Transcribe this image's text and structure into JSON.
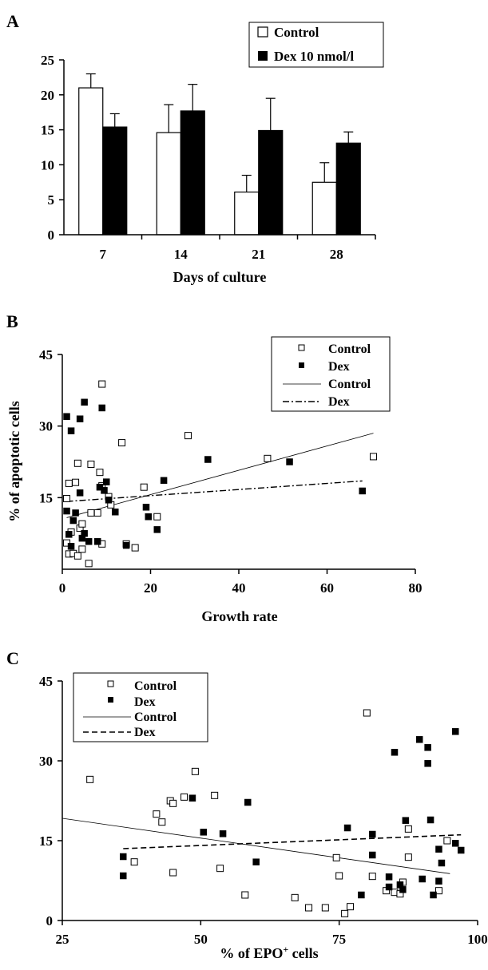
{
  "chart_data": [
    {
      "panel": "A",
      "type": "bar",
      "categories": [
        "7",
        "14",
        "21",
        "28"
      ],
      "series": [
        {
          "name": "Control",
          "values": [
            21.0,
            14.6,
            6.1,
            7.5
          ],
          "errors": [
            2.0,
            4.0,
            2.4,
            2.8
          ],
          "color": "#ffffff"
        },
        {
          "name": "Dex 10 nmol/l",
          "values": [
            15.4,
            17.7,
            14.9,
            13.1
          ],
          "errors": [
            1.9,
            3.8,
            4.6,
            1.6
          ],
          "color": "#000000"
        }
      ],
      "xlabel": "Days of culture",
      "ylabel": "",
      "ylim": [
        0,
        25
      ],
      "yticks": [
        "0",
        "5",
        "10",
        "15",
        "20",
        "25"
      ],
      "legend_position": "top-right"
    },
    {
      "panel": "B",
      "type": "scatter",
      "xlabel": "Growth rate",
      "ylabel": "% of apoptotic cells",
      "xlim": [
        0,
        80
      ],
      "ylim": [
        0,
        45
      ],
      "xticks": [
        "0",
        "20",
        "40",
        "60",
        "80"
      ],
      "yticks": [
        "15",
        "30",
        "45"
      ],
      "legend_position": "top-right",
      "legend": [
        "Control",
        "Dex",
        "Control",
        "Dex"
      ],
      "series": [
        {
          "name": "Control",
          "marker": "open-square",
          "points": [
            [
              9,
              38.8
            ],
            [
              13.5,
              26.5
            ],
            [
              28.5,
              28
            ],
            [
              18.5,
              17.2
            ],
            [
              46.5,
              23.2
            ],
            [
              70.5,
              23.6
            ],
            [
              1,
              14.8
            ],
            [
              1.5,
              18
            ],
            [
              3,
              18.2
            ],
            [
              3.5,
              22.2
            ],
            [
              6.5,
              22
            ],
            [
              8.5,
              20.3
            ],
            [
              9,
              17.5
            ],
            [
              10.5,
              15.2
            ],
            [
              1,
              5.5
            ],
            [
              1.5,
              3.2
            ],
            [
              2,
              7.8
            ],
            [
              2.5,
              3.3
            ],
            [
              3.5,
              2.8
            ],
            [
              4,
              8.6
            ],
            [
              4.5,
              9.5
            ],
            [
              4.5,
              4.2
            ],
            [
              6.5,
              11.8
            ],
            [
              8,
              11.8
            ],
            [
              9,
              5.3
            ],
            [
              11,
              13.5
            ],
            [
              14.5,
              5.3
            ],
            [
              16.5,
              4.5
            ],
            [
              21.5,
              11
            ],
            [
              6,
              1.2
            ]
          ]
        },
        {
          "name": "Dex",
          "marker": "filled-square",
          "points": [
            [
              1,
              32
            ],
            [
              2,
              29
            ],
            [
              4,
              31.5
            ],
            [
              5,
              35
            ],
            [
              9,
              33.8
            ],
            [
              1,
              12.2
            ],
            [
              1.5,
              7.3
            ],
            [
              2,
              4.8
            ],
            [
              2.5,
              10.2
            ],
            [
              3,
              11.8
            ],
            [
              4,
              16
            ],
            [
              4.5,
              6.5
            ],
            [
              5,
              7.5
            ],
            [
              6,
              5.8
            ],
            [
              8,
              5.8
            ],
            [
              8.5,
              17.2
            ],
            [
              9.5,
              16.5
            ],
            [
              10,
              18.3
            ],
            [
              10.5,
              14.5
            ],
            [
              12,
              12
            ],
            [
              14.5,
              5
            ],
            [
              19,
              13
            ],
            [
              19.5,
              11
            ],
            [
              21.5,
              8.3
            ],
            [
              23,
              18.6
            ],
            [
              33,
              23
            ],
            [
              51.5,
              22.5
            ],
            [
              68,
              16.4
            ]
          ]
        },
        {
          "name": "Control",
          "line": "solid",
          "points": [
            [
              1,
              10.8
            ],
            [
              70.5,
              28.5
            ]
          ]
        },
        {
          "name": "Dex",
          "line": "dash-dot",
          "points": [
            [
              1,
              14.2
            ],
            [
              68,
              18.5
            ]
          ]
        }
      ]
    },
    {
      "panel": "C",
      "type": "scatter",
      "xlabel": "% of EPO",
      "xlabel_sup": "+",
      "xlabel_suffix": " cells",
      "ylabel": "",
      "xlim": [
        25,
        100
      ],
      "ylim": [
        0,
        45
      ],
      "xticks": [
        "25",
        "50",
        "75",
        "100"
      ],
      "yticks": [
        "0",
        "15",
        "30",
        "45"
      ],
      "legend_position": "top-left",
      "legend": [
        "Control",
        "Dex",
        "Control",
        "Dex"
      ],
      "series": [
        {
          "name": "Control",
          "marker": "open-square",
          "points": [
            [
              30,
              26.5
            ],
            [
              38,
              11
            ],
            [
              42,
              20
            ],
            [
              43,
              18.5
            ],
            [
              44.5,
              22.5
            ],
            [
              45,
              22
            ],
            [
              45,
              9
            ],
            [
              47,
              23.2
            ],
            [
              49,
              28
            ],
            [
              52.5,
              23.5
            ],
            [
              53.5,
              9.8
            ],
            [
              58,
              4.8
            ],
            [
              67,
              4.3
            ],
            [
              69.5,
              2.4
            ],
            [
              72.5,
              2.4
            ],
            [
              74.5,
              11.8
            ],
            [
              75,
              8.4
            ],
            [
              76,
              1.3
            ],
            [
              77,
              2.6
            ],
            [
              80,
              39
            ],
            [
              81,
              8.3
            ],
            [
              83.5,
              5.6
            ],
            [
              85,
              5.3
            ],
            [
              86,
              5
            ],
            [
              86.5,
              7.2
            ],
            [
              87.5,
              11.9
            ],
            [
              87.5,
              17.2
            ],
            [
              93,
              5.6
            ],
            [
              94.5,
              15
            ]
          ]
        },
        {
          "name": "Dex",
          "marker": "filled-square",
          "points": [
            [
              36,
              12
            ],
            [
              36,
              8.4
            ],
            [
              48.5,
              23
            ],
            [
              50.5,
              16.6
            ],
            [
              54,
              16.3
            ],
            [
              58.5,
              22.2
            ],
            [
              60,
              11
            ],
            [
              76.5,
              17.4
            ],
            [
              79,
              4.8
            ],
            [
              81,
              16.2
            ],
            [
              81,
              12.3
            ],
            [
              84,
              8.2
            ],
            [
              84,
              6.3
            ],
            [
              85,
              31.6
            ],
            [
              86,
              6.7
            ],
            [
              86.5,
              5.8
            ],
            [
              87,
              18.8
            ],
            [
              89.5,
              34
            ],
            [
              90,
              7.8
            ],
            [
              91,
              32.5
            ],
            [
              91,
              29.5
            ],
            [
              91.5,
              18.9
            ],
            [
              92,
              4.8
            ],
            [
              93,
              13.4
            ],
            [
              93,
              7.4
            ],
            [
              93.5,
              10.8
            ],
            [
              96,
              35.5
            ],
            [
              96,
              14.5
            ],
            [
              97,
              13.2
            ]
          ]
        },
        {
          "name": "Control",
          "line": "solid",
          "points": [
            [
              25,
              19.2
            ],
            [
              95,
              8.8
            ]
          ]
        },
        {
          "name": "Dex",
          "line": "dashed",
          "points": [
            [
              36,
              13.5
            ],
            [
              97,
              16.1
            ]
          ]
        }
      ]
    }
  ],
  "panel_labels": [
    "A",
    "B",
    "C"
  ]
}
